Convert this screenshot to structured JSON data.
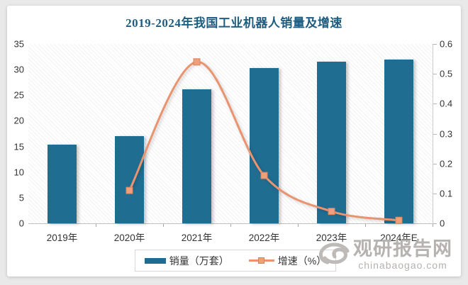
{
  "title": "2019-2024年我国工业机器人销量及增速",
  "colors": {
    "bar": "#206d92",
    "line": "#e9946f",
    "marker_fill": "#eda07a",
    "marker_border": "#d8835f",
    "title": "#1e5c80",
    "axis_text": "#333333",
    "watermark": "#b5b2af"
  },
  "chart_data": {
    "type": "bar",
    "subtype": "bar+line combo",
    "title": "2019-2024年我国工业机器人销量及增速",
    "categories": [
      "2019年",
      "2020年",
      "2021年",
      "2022年",
      "2023年",
      "2024年E"
    ],
    "series": [
      {
        "name": "销量（万套）",
        "type": "bar",
        "axis": "left",
        "values": [
          15.3,
          17,
          26.1,
          30.3,
          31.6,
          32
        ]
      },
      {
        "name": "增速（%）",
        "type": "line",
        "axis": "right",
        "values": [
          null,
          0.11,
          0.54,
          0.16,
          0.04,
          0.01
        ]
      }
    ],
    "left_axis": {
      "min": 0,
      "max": 35,
      "step": 5,
      "ticks": [
        "0",
        "5",
        "10",
        "15",
        "20",
        "25",
        "30",
        "35"
      ]
    },
    "right_axis": {
      "min": 0,
      "max": 0.6,
      "step": 0.1,
      "ticks": [
        "0",
        "0.1",
        "0.2",
        "0.3",
        "0.4",
        "0.5",
        "0.6"
      ]
    },
    "grid": false,
    "plot_background": "diagonal-hatch",
    "legend_position": "bottom"
  },
  "legend": {
    "items": [
      {
        "label": "销量（万套）",
        "swatch": "bar"
      },
      {
        "label": "增速（%）",
        "swatch": "line-marker"
      }
    ]
  },
  "watermark": {
    "logo": "swirl-logo",
    "name": "观研报告网",
    "domain": "chinabaogao.com"
  }
}
